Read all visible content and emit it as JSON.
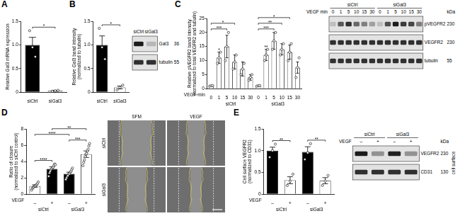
{
  "chart_data": [
    {
      "type": "bar",
      "title": "A",
      "categories": [
        "siCtrl",
        "siGal3"
      ],
      "values": [
        1.0,
        0.03
      ],
      "errors": [
        0.16,
        0.01
      ],
      "points": [
        [
          1.3,
          0.95,
          0.75
        ],
        [
          0.02,
          0.03,
          0.04
        ]
      ],
      "colors": [
        "#000000",
        "#ffffff"
      ],
      "ylabel": [
        "Relative Gal3 mRNA expression"
      ],
      "ylim": [
        0,
        1.5
      ],
      "yticks": [
        0,
        0.5,
        {
          "value": 1,
          "label": "1.0"
        },
        1.5
      ],
      "significance": [
        {
          "from": 0,
          "to": 1,
          "label": "*"
        }
      ]
    },
    {
      "type": "bar",
      "title": "B",
      "categories": [
        "siCtrl",
        "siGal3"
      ],
      "values": [
        1.0,
        0.1
      ],
      "errors": [
        0.19,
        0.03
      ],
      "points": [
        [
          1.35,
          0.95,
          0.7
        ],
        [
          0.05,
          0.1,
          0.15
        ]
      ],
      "colors": [
        "#000000",
        "#ffffff"
      ],
      "ylabel": [
        "Relative Gal3 band intensity",
        "(normalized to tubulin)"
      ],
      "ylim": [
        0,
        1.5
      ],
      "yticks": [
        0,
        0.5,
        {
          "value": 1,
          "label": "1.0"
        },
        1.5
      ],
      "significance": [
        {
          "from": 0,
          "to": 1,
          "label": "*"
        }
      ]
    },
    {
      "type": "bar",
      "title": "C",
      "categories": [
        "0",
        "1",
        "5",
        "10",
        "15",
        "30",
        "0",
        "1",
        "5",
        "10",
        "15",
        "30"
      ],
      "values": [
        1,
        11,
        15,
        9.5,
        7,
        4,
        1,
        12,
        17,
        14,
        13,
        7.5
      ],
      "errors": [
        0.2,
        2,
        4,
        2.5,
        2.5,
        1,
        0.2,
        2,
        3,
        2,
        2.5,
        2
      ],
      "points": [
        [
          0.9,
          1,
          1.1
        ],
        [
          9,
          11,
          13
        ],
        [
          10,
          15,
          20
        ],
        [
          7,
          9.5,
          12
        ],
        [
          5,
          7,
          9
        ],
        [
          3,
          4,
          5
        ],
        [
          0.9,
          1,
          1.1
        ],
        [
          10,
          12,
          14
        ],
        [
          14,
          17,
          20
        ],
        [
          12,
          14,
          16
        ],
        [
          10,
          13,
          16
        ],
        [
          4,
          7.5,
          11
        ]
      ],
      "colors": [
        "#ffffff",
        "#ffffff",
        "#ffffff",
        "#ffffff",
        "#ffffff",
        "#ffffff",
        "#ffffff",
        "#ffffff",
        "#ffffff",
        "#ffffff",
        "#ffffff",
        "#ffffff"
      ],
      "ylabel": [
        "Relative pVEGFR2 band intensity",
        "(normalized to total VEGFR2 and tubulin)"
      ],
      "xlabel": "VEGF min",
      "groups": [
        {
          "label": "siCtrl",
          "from": 0,
          "to": 5
        },
        {
          "label": "siGal3",
          "from": 6,
          "to": 11
        }
      ],
      "ylim": [
        0,
        25
      ],
      "yticks": [
        0,
        5,
        10,
        15,
        20,
        25
      ],
      "significance": [
        {
          "from": 1,
          "to": 1,
          "label": "*"
        },
        {
          "from": 0,
          "to": 2,
          "label": "***"
        },
        {
          "from": 0,
          "to": 3,
          "label": "*"
        },
        {
          "from": 7,
          "to": 7,
          "label": "**"
        },
        {
          "from": 6,
          "to": 8,
          "label": "***"
        },
        {
          "from": 6,
          "to": 9,
          "label": "**"
        },
        {
          "from": 6,
          "to": 10,
          "label": "*"
        }
      ]
    },
    {
      "type": "bar",
      "title": "D",
      "categories": [
        "–",
        "+",
        "–",
        "+"
      ],
      "values": [
        1.0,
        3.1,
        2.5,
        4.9
      ],
      "errors": [
        0.15,
        0.25,
        0.2,
        0.4
      ],
      "points": [
        [
          0.5,
          0.7,
          0.8,
          0.9,
          1.0,
          1.0,
          1.1,
          1.2,
          1.3,
          1.5
        ],
        [
          2.2,
          2.6,
          2.8,
          3.0,
          3.1,
          3.2,
          3.3,
          3.5,
          3.7,
          3.6
        ],
        [
          1.8,
          2.0,
          2.2,
          2.3,
          2.5,
          2.5,
          2.7,
          2.8,
          3.0,
          3.2
        ],
        [
          3.5,
          3.9,
          4.2,
          4.6,
          4.9,
          5.0,
          5.3,
          5.5,
          5.9,
          6.2
        ]
      ],
      "colors": [
        "#ffffff",
        "#000000",
        "#000000",
        "#ffffff"
      ],
      "ylabel": [
        "Ratio of closure",
        "(normalized to siCtrl control)"
      ],
      "xlabel": "VEGF",
      "groups": [
        {
          "label": "siCtrl",
          "from": 0,
          "to": 1
        },
        {
          "label": "siGal3",
          "from": 2,
          "to": 3
        }
      ],
      "ylim": [
        0,
        8
      ],
      "yticks": [
        0,
        2,
        4,
        6,
        8
      ],
      "significance": [
        {
          "from": 0,
          "to": 1,
          "label": "****"
        },
        {
          "from": 2,
          "to": 3,
          "label": "***"
        },
        {
          "from": 0,
          "to": 2,
          "label": "****"
        },
        {
          "from": 1,
          "to": 3,
          "label": "**"
        }
      ]
    },
    {
      "type": "bar",
      "title": "E",
      "categories": [
        "–",
        "+",
        "–",
        "+"
      ],
      "values": [
        1.0,
        0.32,
        0.97,
        0.31
      ],
      "errors": [
        0.08,
        0.08,
        0.12,
        0.07
      ],
      "points": [
        [
          0.85,
          1.0,
          1.15
        ],
        [
          0.2,
          0.3,
          0.46
        ],
        [
          0.8,
          0.95,
          1.16
        ],
        [
          0.2,
          0.3,
          0.43
        ]
      ],
      "colors": [
        "#000000",
        "#ffffff",
        "#000000",
        "#ffffff"
      ],
      "ylabel": [
        "Cell surface VEGFR2",
        "(normalized to CD31)"
      ],
      "xlabel": "VEGF",
      "groups": [
        {
          "label": "siCtrl",
          "from": 0,
          "to": 1
        },
        {
          "label": "siGal3",
          "from": 2,
          "to": 3
        }
      ],
      "ylim": [
        0,
        1.5
      ],
      "yticks": [
        0,
        0.5,
        {
          "value": 1,
          "label": "1.0"
        },
        1.5
      ],
      "significance": [
        {
          "from": 0,
          "to": 1,
          "label": "**"
        },
        {
          "from": 2,
          "to": 3,
          "label": "**"
        }
      ]
    }
  ],
  "blots": [
    {
      "panel": "B",
      "lanes": [
        "siCtrl",
        "siGal3"
      ],
      "rows": [
        {
          "label": "Gal3",
          "kda": 36
        },
        {
          "label": "tubulin",
          "kda": 55
        }
      ]
    },
    {
      "panel": "C",
      "groups": [
        "siCtrl",
        "siGal3"
      ],
      "lane_title": "VEGF min",
      "lanes": [
        "0",
        "1",
        "5",
        "10",
        "15",
        "30",
        "0",
        "1",
        "5",
        "10",
        "15",
        "30"
      ],
      "kda_title": "kDa",
      "rows": [
        {
          "label": "pVEGFR2",
          "kda": 230
        },
        {
          "label": "VEGFR2",
          "kda": 230
        },
        {
          "label": "tubulin",
          "kda": 55
        }
      ]
    },
    {
      "panel": "E",
      "groups": [
        "siCtrl",
        "siGal3"
      ],
      "lane_title": "VEGF",
      "lanes": [
        "–",
        "+",
        "–",
        "+"
      ],
      "kda_title": "kDa",
      "side_label": "cell surface",
      "rows": [
        {
          "label": "VEGFR2",
          "kda": 230
        },
        {
          "label": "CD31",
          "kda": 130
        }
      ]
    }
  ],
  "images": {
    "panel": "D",
    "columns": [
      "SFM",
      "VEGF"
    ],
    "rows": [
      "siCtrl",
      "siGal3"
    ]
  }
}
